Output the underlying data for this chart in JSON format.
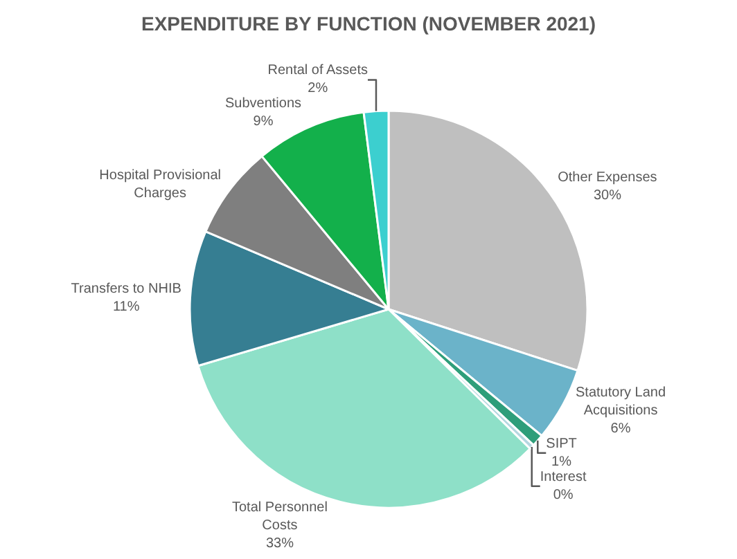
{
  "chart_data": {
    "type": "pie",
    "title": "EXPENDITURE BY FUNCTION (NOVEMBER 2021)",
    "categories": [
      "Other Expenses",
      "Statutory Land Acquisitions",
      "SIPT",
      "Interest",
      "Total Personnel Costs",
      "Transfers to NHIB",
      "Hospital Provisional Charges",
      "Subventions",
      "Rental of Assets"
    ],
    "values": [
      30,
      6,
      1,
      0.4,
      33,
      11,
      7.6,
      9,
      2
    ],
    "value_labels": [
      "30%",
      "6%",
      "1%",
      "0%",
      "33%",
      "11%",
      null,
      "9%",
      "2%"
    ],
    "colors": [
      "#bfbfbf",
      "#6bb3c9",
      "#2e9e7a",
      "#b4d7e0",
      "#8ee0c8",
      "#367e92",
      "#7f7f7f",
      "#13b04b",
      "#3ccfcf"
    ],
    "legend": false
  }
}
